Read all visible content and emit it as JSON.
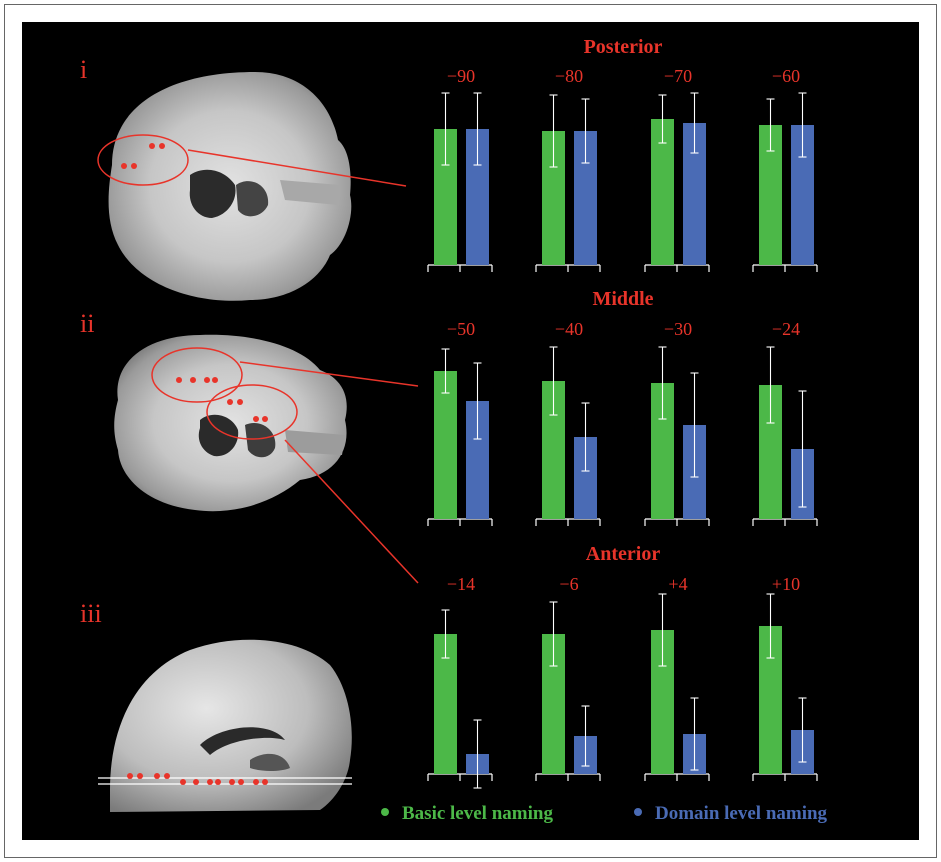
{
  "chart_data": {
    "type": "bar",
    "panels": [
      {
        "label": "i",
        "title": "Posterior",
        "slices": [
          {
            "label": "−90",
            "basic": 0.68,
            "basic_err": 0.18,
            "domain": 0.68,
            "domain_err": 0.18
          },
          {
            "label": "−80",
            "basic": 0.67,
            "basic_err": 0.18,
            "domain": 0.67,
            "domain_err": 0.16
          },
          {
            "label": "−70",
            "basic": 0.73,
            "basic_err": 0.12,
            "domain": 0.71,
            "domain_err": 0.15
          },
          {
            "label": "−60",
            "basic": 0.7,
            "basic_err": 0.13,
            "domain": 0.7,
            "domain_err": 0.16
          }
        ]
      },
      {
        "label": "ii",
        "title": "Middle",
        "slices": [
          {
            "label": "−50",
            "basic": 0.74,
            "basic_err": 0.11,
            "domain": 0.59,
            "domain_err": 0.19
          },
          {
            "label": "−40",
            "basic": 0.69,
            "basic_err": 0.17,
            "domain": 0.41,
            "domain_err": 0.17
          },
          {
            "label": "−30",
            "basic": 0.68,
            "basic_err": 0.18,
            "domain": 0.47,
            "domain_err": 0.26
          },
          {
            "label": "−24",
            "basic": 0.67,
            "basic_err": 0.19,
            "domain": 0.35,
            "domain_err": 0.29
          }
        ]
      },
      {
        "label": "iii",
        "title": "Anterior",
        "slices": [
          {
            "label": "−14",
            "basic": 0.7,
            "basic_err": 0.12,
            "domain": 0.1,
            "domain_err": 0.17
          },
          {
            "label": "−6",
            "basic": 0.7,
            "basic_err": 0.16,
            "domain": 0.19,
            "domain_err": 0.15
          },
          {
            "label": "+4",
            "basic": 0.72,
            "basic_err": 0.18,
            "domain": 0.2,
            "domain_err": 0.18
          },
          {
            "label": "+10",
            "basic": 0.74,
            "basic_err": 0.16,
            "domain": 0.22,
            "domain_err": 0.16
          }
        ]
      }
    ],
    "legend": [
      {
        "name": "Basic level naming",
        "color": "#4cb848"
      },
      {
        "name": "Domain level naming",
        "color": "#4a6bb5"
      }
    ],
    "legend_position": "bottom",
    "ylim": [
      0,
      1
    ],
    "grid": false
  }
}
